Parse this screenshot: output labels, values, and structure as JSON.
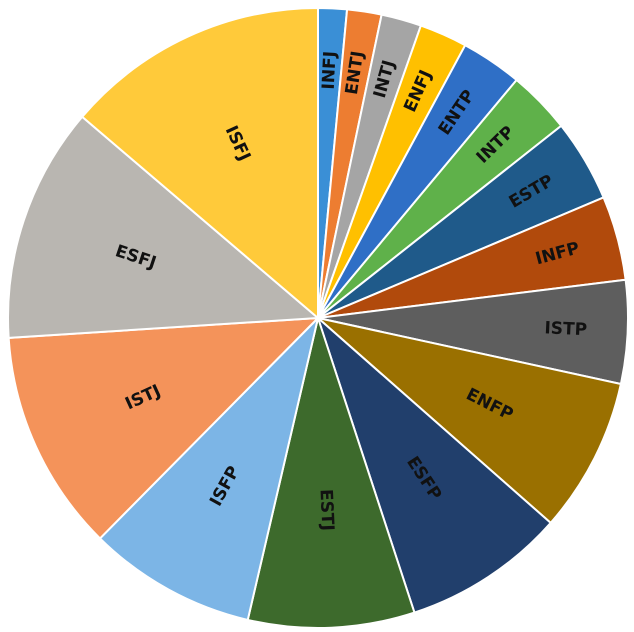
{
  "chart_data": {
    "type": "pie",
    "categories": [
      "INFJ",
      "ENTJ",
      "INTJ",
      "ENFJ",
      "ENTP",
      "INTP",
      "ESTP",
      "INFP",
      "ISTP",
      "ENFP",
      "ESFP",
      "ESTJ",
      "ISFP",
      "ISTJ",
      "ESFJ",
      "ISFJ"
    ],
    "values": [
      1.5,
      1.8,
      2.1,
      2.5,
      3.2,
      3.3,
      4.3,
      4.4,
      5.4,
      8.1,
      8.5,
      8.7,
      8.8,
      11.6,
      12.3,
      13.8
    ],
    "colors": [
      "#3a8fd6",
      "#ed7d31",
      "#a5a5a5",
      "#ffc000",
      "#2f6fc6",
      "#5fb14a",
      "#1f5a8a",
      "#b14a0c",
      "#5e5e5e",
      "#9a7000",
      "#213f6c",
      "#3d6a2c",
      "#7cb5e6",
      "#f4935a",
      "#b9b6b1",
      "#ffca3a"
    ]
  }
}
